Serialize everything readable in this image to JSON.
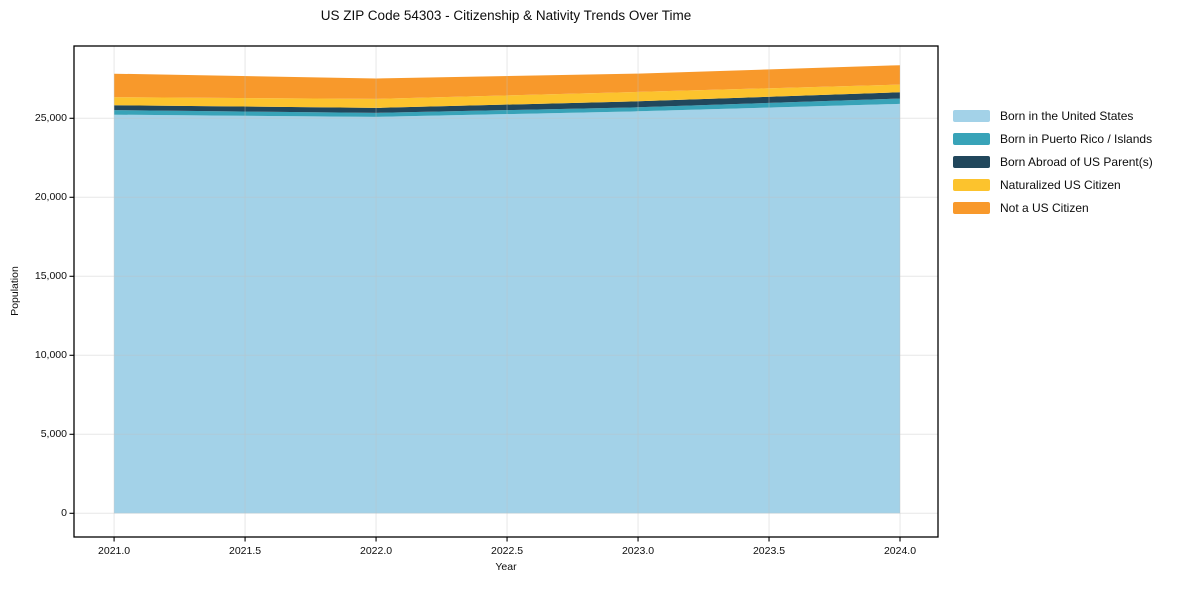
{
  "chart_data": {
    "type": "area",
    "stacked": true,
    "title": "US ZIP Code 54303 - Citizenship & Nativity Trends Over Time",
    "xlabel": "Year",
    "ylabel": "Population",
    "x": [
      2021,
      2022,
      2023,
      2024
    ],
    "series": [
      {
        "name": "Born in the United States",
        "color": "#a3d2e8",
        "values": [
          25230,
          25090,
          25440,
          25910
        ]
      },
      {
        "name": "Born in Puerto Rico / Islands",
        "color": "#38a3b8",
        "values": [
          285,
          250,
          255,
          340
        ]
      },
      {
        "name": "Born Abroad of US Parent(s)",
        "color": "#21475c",
        "values": [
          315,
          320,
          380,
          395
        ]
      },
      {
        "name": "Naturalized US Citizen",
        "color": "#fcc32d",
        "values": [
          505,
          570,
          595,
          490
        ]
      },
      {
        "name": "Not a US Citizen",
        "color": "#f8992b",
        "values": [
          1490,
          1285,
          1160,
          1225
        ]
      }
    ],
    "xlim": [
      2020.847,
      2024.145
    ],
    "ylim": [
      -1500,
      29575
    ],
    "x_ticks": {
      "values": [
        2021,
        2021.5,
        2022,
        2022.5,
        2023,
        2023.5,
        2024
      ],
      "labels": [
        "2021.0",
        "2021.5",
        "2022.0",
        "2022.5",
        "2023.0",
        "2023.5",
        "2024.0"
      ]
    },
    "y_ticks": {
      "values": [
        0,
        5000,
        10000,
        15000,
        20000,
        25000
      ],
      "labels": [
        "0",
        "5,000",
        "10,000",
        "15,000",
        "20,000",
        "25,000"
      ]
    },
    "grid": true,
    "grid_color": "#c0c0c0",
    "frame_color": "#000000",
    "legend_position": "right-outside"
  }
}
